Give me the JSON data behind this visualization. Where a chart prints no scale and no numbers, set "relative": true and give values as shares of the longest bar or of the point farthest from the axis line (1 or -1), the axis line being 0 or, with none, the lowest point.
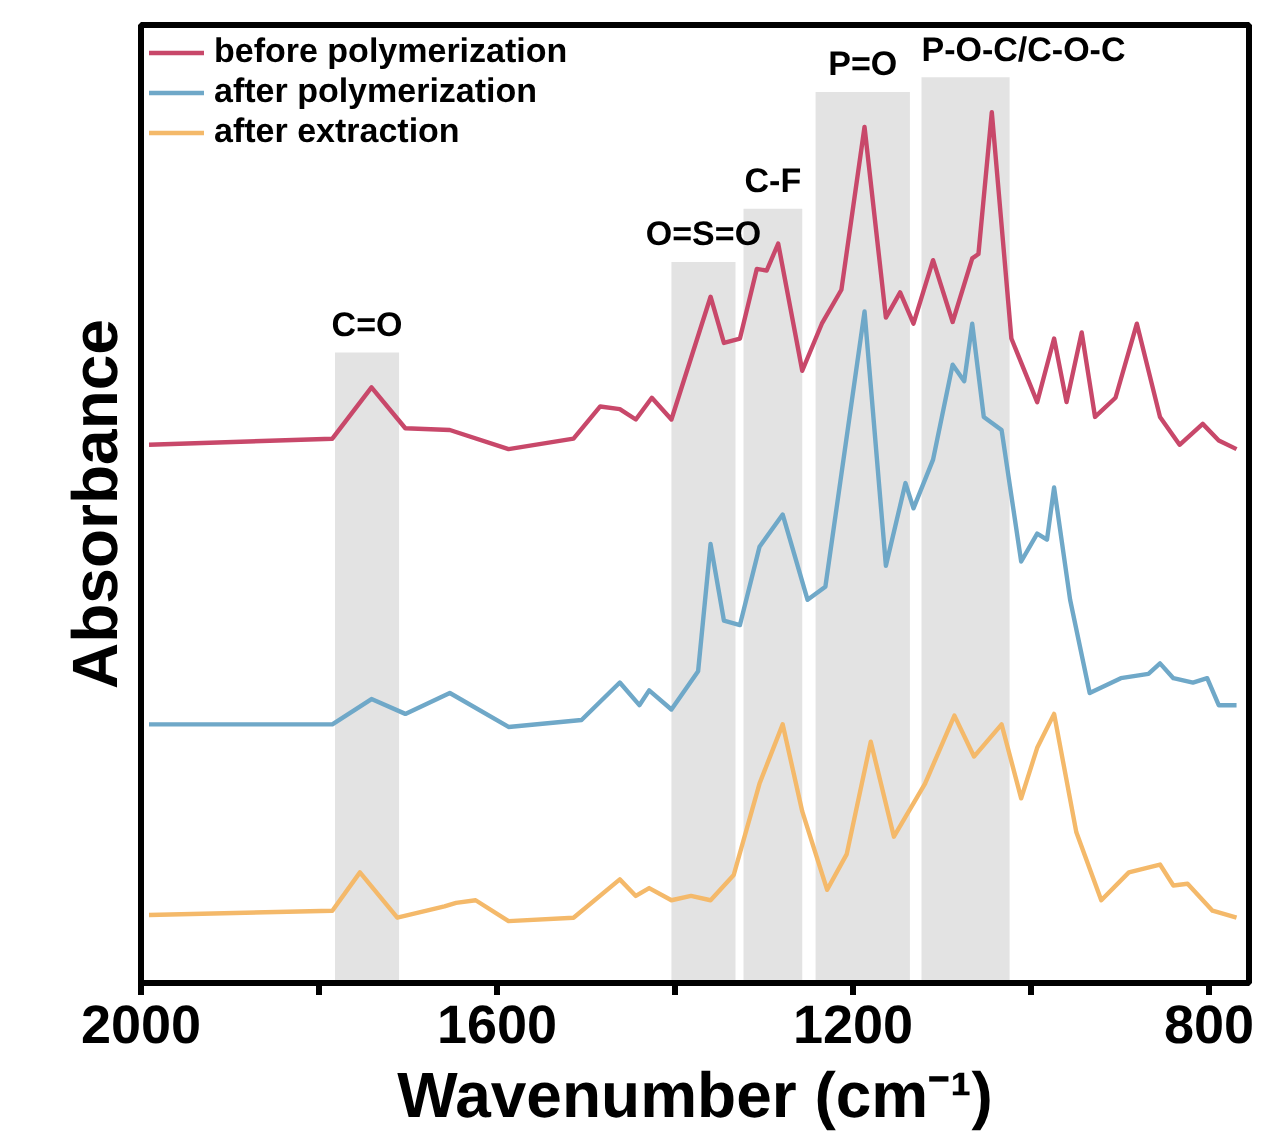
{
  "chart_data": {
    "type": "line",
    "relative": true,
    "xlabel": "Wavenumber (cm⁻¹)",
    "ylabel": "Absorbance",
    "xlim": [
      2000,
      755
    ],
    "xticks": [
      2000,
      {
        "value": 1800,
        "label": null
      },
      1600,
      {
        "value": 1400,
        "label": null
      },
      1200,
      {
        "value": 1000,
        "label": null
      },
      800
    ],
    "tick_labels": "x",
    "grid": false,
    "legend": "top left",
    "marker": "none",
    "line_style": "solid",
    "x": [
      1991,
      1785,
      1741,
      1703,
      1653,
      1587,
      1514,
      1484,
      1462,
      1444,
      1426,
      1404,
      1360,
      1345,
      1327,
      1308,
      1297,
      1284,
      1257,
      1235,
      1213,
      1187,
      1163,
      1147,
      1132,
      1110,
      1088,
      1066,
      1059,
      1044,
      1022,
      993,
      974,
      960,
      943,
      928,
      905,
      881,
      855,
      833,
      807,
      789,
      769
    ],
    "series": [
      {
        "name": "before polymerization",
        "color": "#c8486a",
        "values": [
          0.618,
          0.625,
          0.684,
          0.637,
          0.635,
          0.613,
          0.625,
          0.662,
          0.659,
          0.647,
          0.672,
          0.647,
          0.788,
          0.735,
          0.74,
          0.82,
          0.818,
          0.849,
          0.703,
          0.757,
          0.796,
          0.983,
          0.764,
          0.793,
          0.757,
          0.83,
          0.759,
          0.832,
          0.837,
          1.0,
          0.74,
          0.667,
          0.74,
          0.667,
          0.747,
          0.65,
          0.672,
          0.757,
          0.65,
          0.618,
          0.642,
          0.623,
          0.613
        ]
      },
      {
        "name": "after polymerization",
        "color": "#6fa8c8",
        "x": [
          1991,
          1785,
          1741,
          1703,
          1653,
          1587,
          1505,
          1462,
          1440,
          1429,
          1404,
          1374,
          1360,
          1345,
          1327,
          1305,
          1279,
          1251,
          1231,
          1187,
          1163,
          1141,
          1132,
          1110,
          1088,
          1075,
          1066,
          1053,
          1033,
          1011,
          993,
          982,
          974,
          956,
          934,
          899,
          868,
          855,
          840,
          818,
          802,
          789,
          769
        ],
        "values": [
          0.297,
          0.297,
          0.326,
          0.309,
          0.333,
          0.294,
          0.302,
          0.345,
          0.319,
          0.336,
          0.314,
          0.358,
          0.504,
          0.416,
          0.411,
          0.501,
          0.538,
          0.44,
          0.455,
          0.771,
          0.479,
          0.574,
          0.545,
          0.601,
          0.71,
          0.691,
          0.757,
          0.65,
          0.635,
          0.484,
          0.516,
          0.509,
          0.569,
          0.44,
          0.333,
          0.35,
          0.355,
          0.367,
          0.35,
          0.345,
          0.35,
          0.319,
          0.319
        ]
      },
      {
        "name": "after extraction",
        "color": "#f4b96a",
        "x": [
          1991,
          1785,
          1754,
          1712,
          1659,
          1646,
          1624,
          1587,
          1514,
          1462,
          1444,
          1429,
          1404,
          1382,
          1360,
          1334,
          1305,
          1279,
          1257,
          1229,
          1207,
          1180,
          1154,
          1119,
          1086,
          1064,
          1033,
          1011,
          993,
          974,
          949,
          921,
          890,
          855,
          840,
          824,
          796,
          769
        ],
        "values": [
          0.078,
          0.083,
          0.127,
          0.075,
          0.088,
          0.092,
          0.095,
          0.071,
          0.075,
          0.119,
          0.1,
          0.109,
          0.095,
          0.1,
          0.095,
          0.124,
          0.229,
          0.297,
          0.197,
          0.107,
          0.148,
          0.277,
          0.168,
          0.229,
          0.307,
          0.26,
          0.297,
          0.212,
          0.27,
          0.309,
          0.173,
          0.095,
          0.127,
          0.136,
          0.112,
          0.114,
          0.083,
          0.075
        ]
      }
    ],
    "bands": [
      {
        "axis": "x",
        "from": 1782,
        "to": 1710,
        "label": "C=O",
        "color": "#e3e3e3"
      },
      {
        "axis": "x",
        "from": 1404,
        "to": 1332,
        "label": "O=S=O",
        "color": "#e3e3e3"
      },
      {
        "axis": "x",
        "from": 1323,
        "to": 1257,
        "label": "C-F",
        "color": "#e3e3e3"
      },
      {
        "axis": "x",
        "from": 1242,
        "to": 1136,
        "label": "P=O",
        "color": "#e3e3e3"
      },
      {
        "axis": "x",
        "from": 1123,
        "to": 1024,
        "label": "P-O-C/C-O-C",
        "color": "#e3e3e3"
      }
    ]
  }
}
